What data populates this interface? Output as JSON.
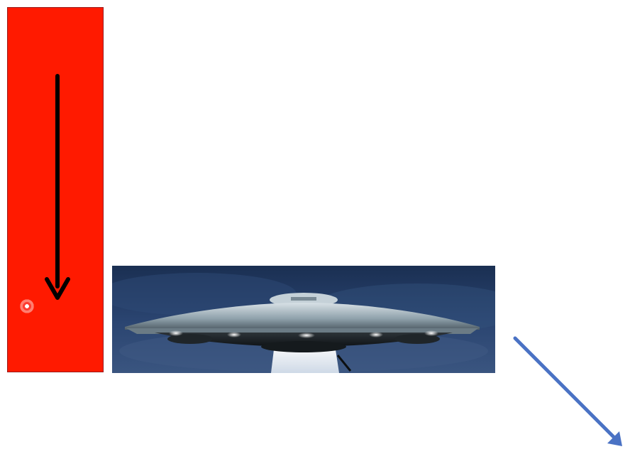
{
  "slide": {
    "background_color": "#ffffff"
  },
  "red_panel": {
    "color": "#ff1a00",
    "arrow": {
      "icon": "down-arrow-icon",
      "color": "#000000"
    }
  },
  "pointer": {
    "icon": "laser-pointer-icon",
    "color": "#ff3b2f"
  },
  "ufo_picture": {
    "icon": "flying-saucer-icon",
    "sky_color": "#1f3557"
  },
  "diagonal_arrow": {
    "icon": "down-right-arrow-icon",
    "color": "#4a72c4"
  }
}
